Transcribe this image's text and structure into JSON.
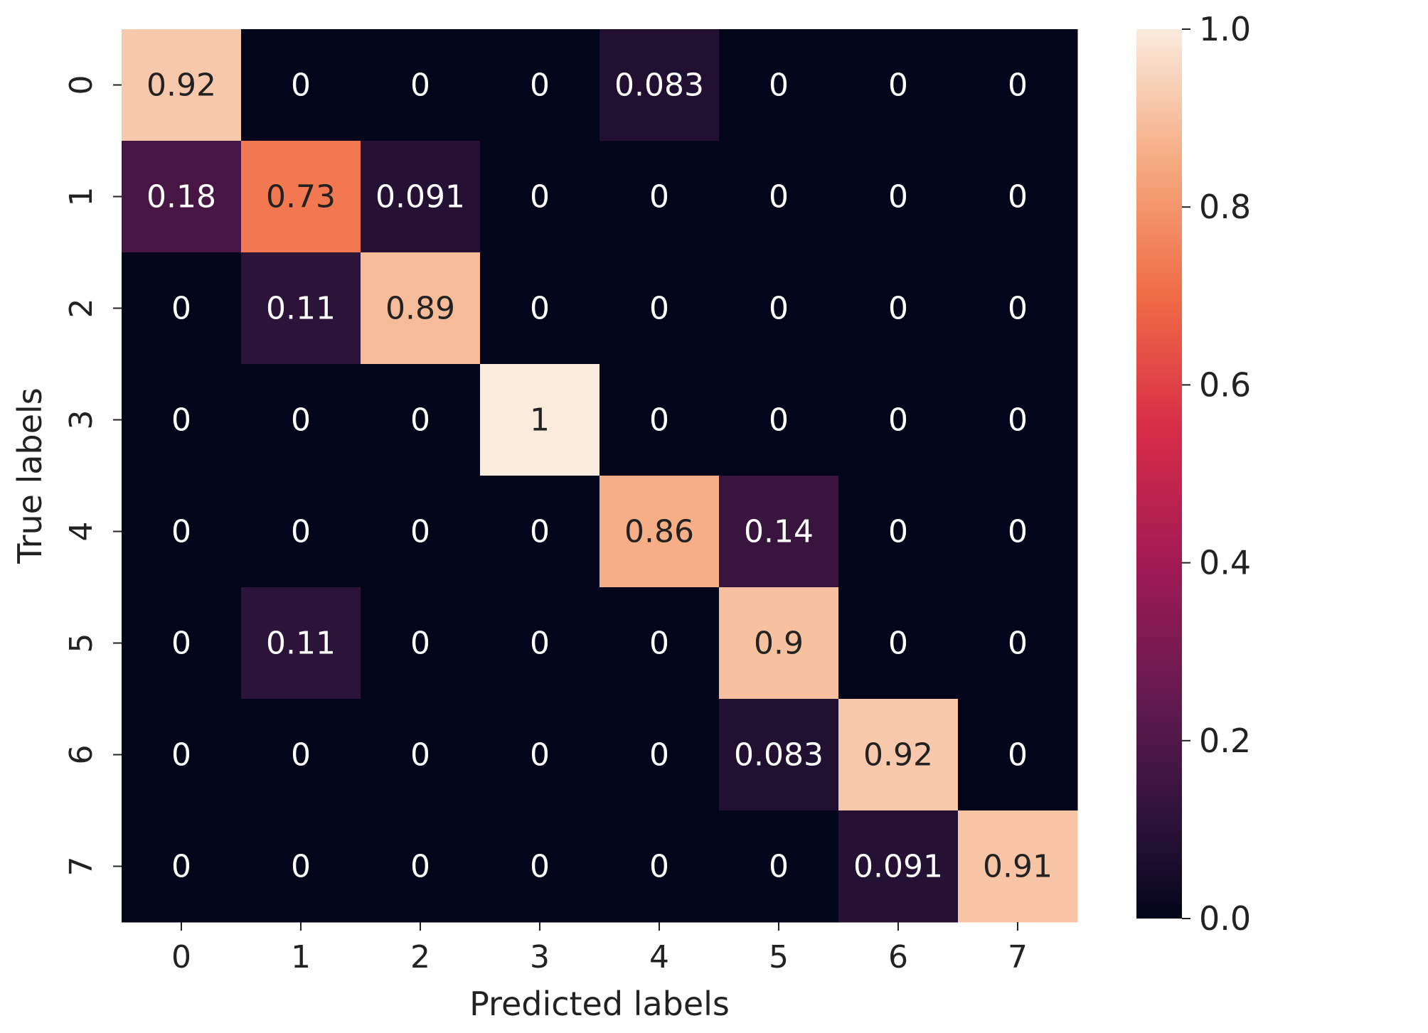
{
  "chart_data": {
    "type": "heatmap",
    "title": "",
    "xlabel": "Predicted labels",
    "ylabel": "True labels",
    "x_categories": [
      "0",
      "1",
      "2",
      "3",
      "4",
      "5",
      "6",
      "7"
    ],
    "y_categories": [
      "0",
      "1",
      "2",
      "3",
      "4",
      "5",
      "6",
      "7"
    ],
    "values": [
      [
        0.92,
        0,
        0,
        0,
        0.083,
        0,
        0,
        0
      ],
      [
        0.18,
        0.73,
        0.091,
        0,
        0,
        0,
        0,
        0
      ],
      [
        0,
        0.11,
        0.89,
        0,
        0,
        0,
        0,
        0
      ],
      [
        0,
        0,
        0,
        1,
        0,
        0,
        0,
        0
      ],
      [
        0,
        0,
        0,
        0,
        0.86,
        0.14,
        0,
        0
      ],
      [
        0,
        0.11,
        0,
        0,
        0,
        0.9,
        0,
        0
      ],
      [
        0,
        0,
        0,
        0,
        0,
        0.083,
        0.92,
        0
      ],
      [
        0,
        0,
        0,
        0,
        0,
        0,
        0.091,
        0.91
      ]
    ],
    "cell_labels": [
      [
        "0.92",
        "0",
        "0",
        "0",
        "0.083",
        "0",
        "0",
        "0"
      ],
      [
        "0.18",
        "0.73",
        "0.091",
        "0",
        "0",
        "0",
        "0",
        "0"
      ],
      [
        "0",
        "0.11",
        "0.89",
        "0",
        "0",
        "0",
        "0",
        "0"
      ],
      [
        "0",
        "0",
        "0",
        "1",
        "0",
        "0",
        "0",
        "0"
      ],
      [
        "0",
        "0",
        "0",
        "0",
        "0.86",
        "0.14",
        "0",
        "0"
      ],
      [
        "0",
        "0.11",
        "0",
        "0",
        "0",
        "0.9",
        "0",
        "0"
      ],
      [
        "0",
        "0",
        "0",
        "0",
        "0",
        "0.083",
        "0.92",
        "0"
      ],
      [
        "0",
        "0",
        "0",
        "0",
        "0",
        "0",
        "0.091",
        "0.91"
      ]
    ],
    "colorbar": {
      "min": 0.0,
      "max": 1.0,
      "ticks": [
        0.0,
        0.2,
        0.4,
        0.6,
        0.8,
        1.0
      ],
      "tick_labels": [
        "0.0",
        "0.2",
        "0.4",
        "0.6",
        "0.8",
        "1.0"
      ],
      "colormap": "rocket"
    },
    "colors": {
      "text_light": "#ffffff",
      "text_dark": "#222222",
      "axis": "#222222"
    }
  }
}
